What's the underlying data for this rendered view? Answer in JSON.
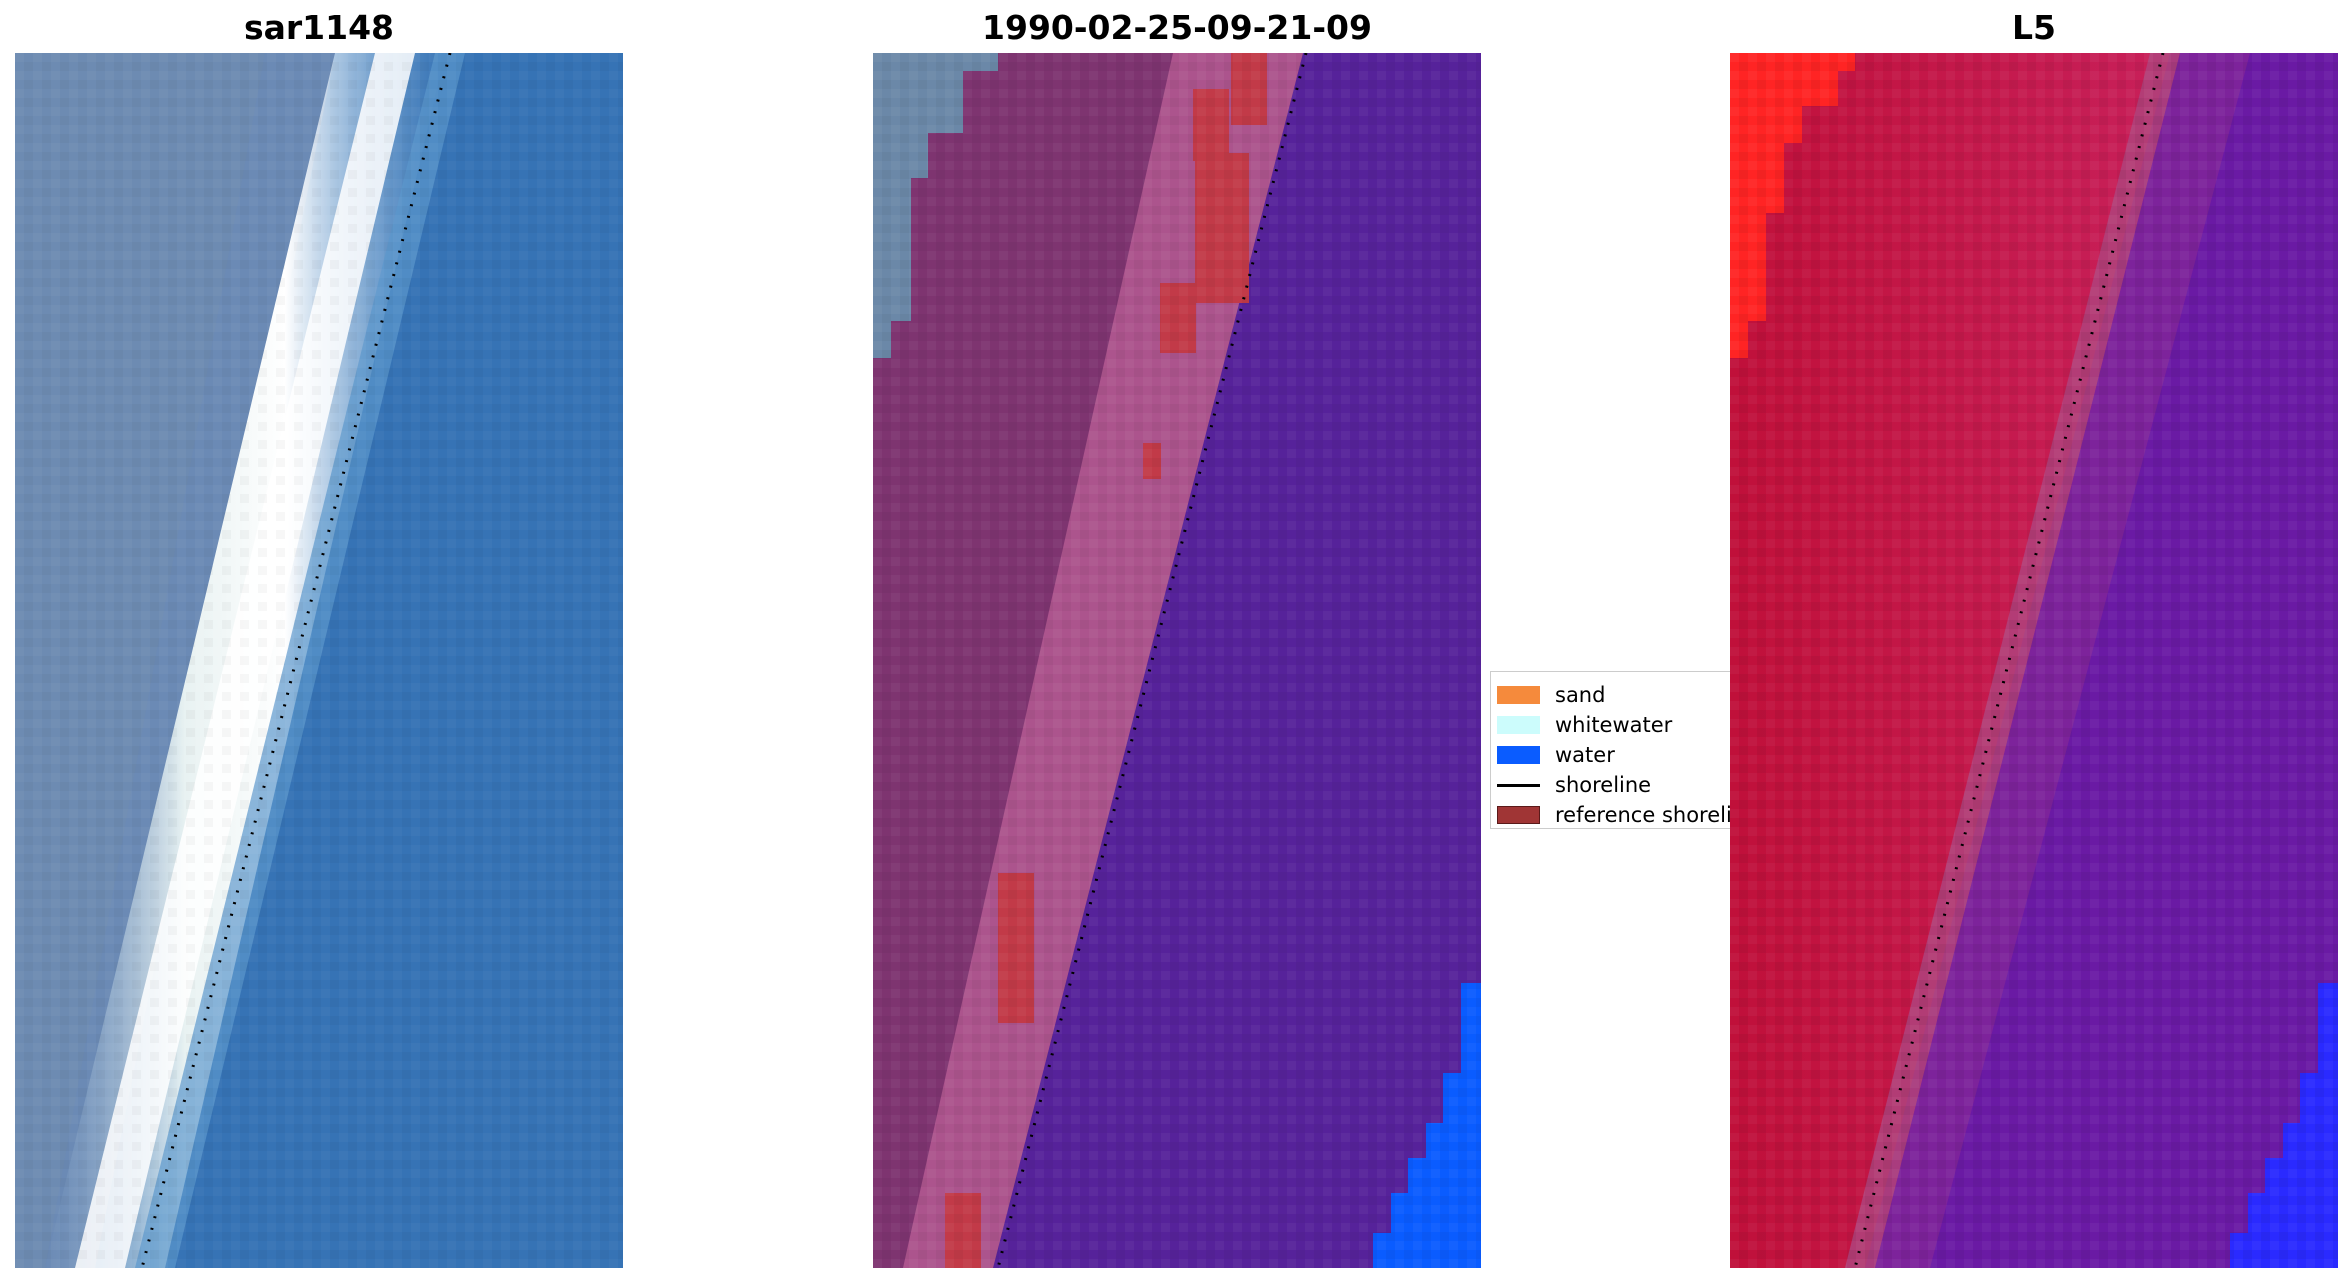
{
  "panels": [
    {
      "id": "rgb",
      "title": "sar1148"
    },
    {
      "id": "classified",
      "title": "1990-02-25-09-21-09"
    },
    {
      "id": "index",
      "title": "L5"
    }
  ],
  "legend": {
    "items": [
      {
        "label": "sand",
        "color": "#f58a3c",
        "kind": "patch"
      },
      {
        "label": "whitewater",
        "color": "#ccfcfc",
        "kind": "patch"
      },
      {
        "label": "water",
        "color": "#0a5cff",
        "kind": "patch"
      },
      {
        "label": "shoreline",
        "color": "#000000",
        "kind": "line"
      },
      {
        "label": "reference shoreline",
        "color": "#a03535",
        "kind": "patch"
      }
    ]
  },
  "colors": {
    "water_blue": "#3673b5",
    "land_blue_grey": "#6b8ab5",
    "surf_white": "#f4faf7",
    "class_purple": "#56229a",
    "class_mauve": "#7e3470",
    "class_pink": "#b45a92",
    "class_red": "#c23a48",
    "index_red": "#c0103a",
    "index_bright_red": "#ff2424",
    "index_purple": "#6a1aa4",
    "water_mask_blue": "#0a5cff",
    "index_water_blue": "#2a2aff"
  }
}
